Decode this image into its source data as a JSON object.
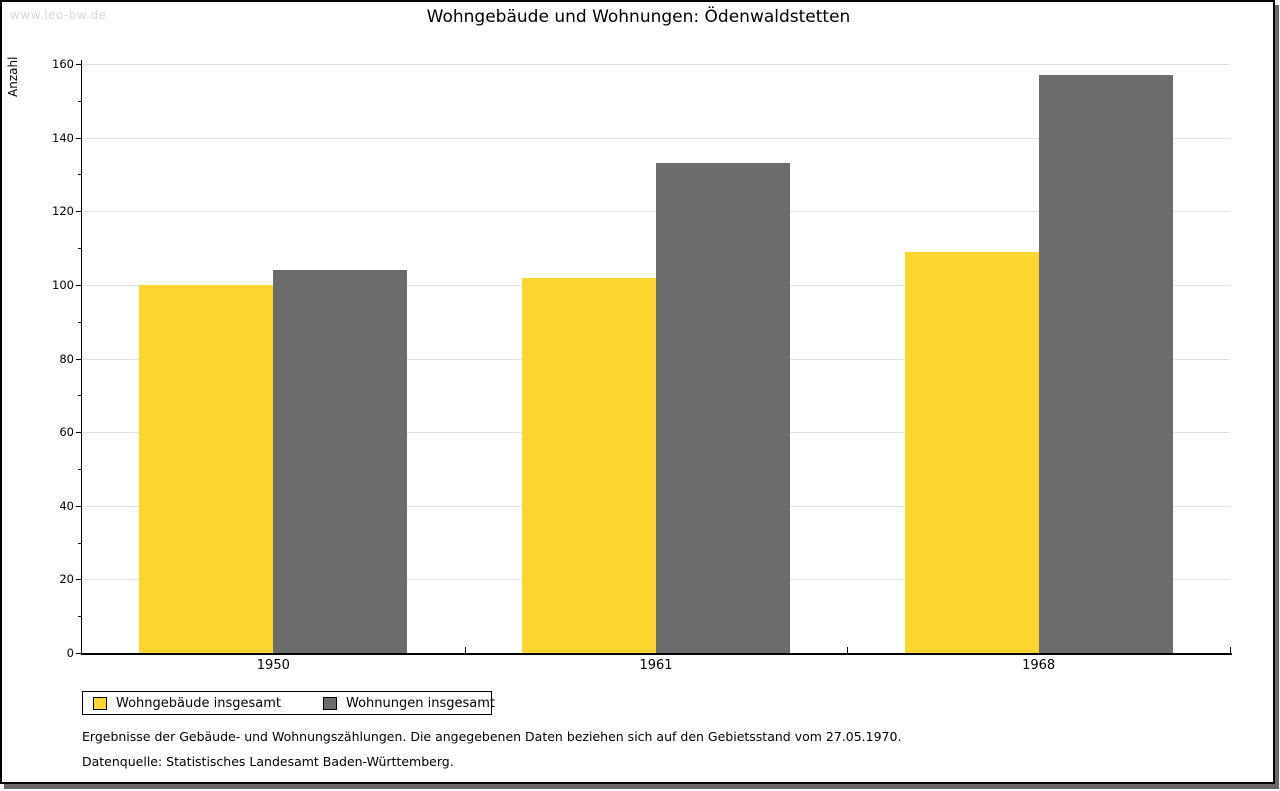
{
  "watermark": "www.leo-bw.de",
  "footer": {
    "line1": "Ergebnisse der Gebäude- und Wohnungszählungen. Die angegebenen Daten beziehen sich auf den Gebietsstand vom 27.05.1970.",
    "line2": "Datenquelle: Statistisches Landesamt Baden-Württemberg."
  },
  "chart_data": {
    "type": "bar",
    "title": "Wohngebäude und Wohnungen: Ödenwaldstetten",
    "xlabel": "",
    "ylabel": "Anzahl",
    "categories": [
      "1950",
      "1961",
      "1968"
    ],
    "series": [
      {
        "name": "Wohngebäude insgesamt",
        "color": "#FCD52D",
        "values": [
          100,
          102,
          109
        ]
      },
      {
        "name": "Wohnungen insgesamt",
        "color": "#6C6C6C",
        "values": [
          104,
          133,
          157
        ]
      }
    ],
    "ylim": [
      0,
      160
    ],
    "yticks": [
      0,
      20,
      40,
      60,
      80,
      100,
      120,
      140,
      160
    ],
    "ytick_step": 20,
    "yminor_step": 10,
    "grid": true,
    "gridline_color": "#e0e0e0",
    "legend_position": "bottom-left"
  }
}
